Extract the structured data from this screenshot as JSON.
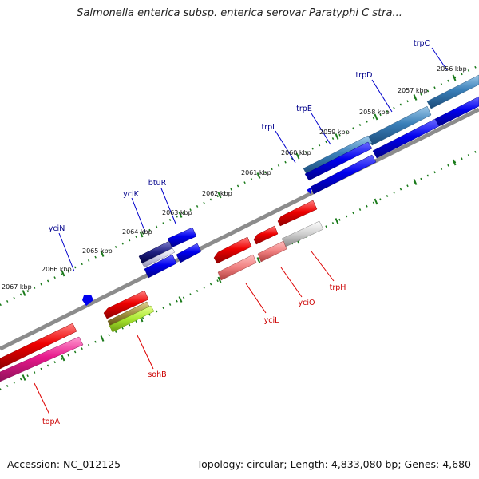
{
  "title": "Salmonella enterica subsp. enterica serovar Paratyphi C stra...",
  "accession": "Accession: NC_012125",
  "summary": "Topology: circular; Length: 4,833,080 bp; Genes: 4,680",
  "colors": {
    "backbone": "#8c8c8c",
    "tick": "#1a7a1a",
    "forward_label": "#00008b",
    "reverse_label": "#cc0000",
    "forward_gene": "#0000ee",
    "reverse_gene": "#ee0000"
  },
  "kbp_labels": [
    "2056 kbp",
    "2057 kbp",
    "2058 kbp",
    "2059 kbp",
    "2060 kbp",
    "2061 kbp",
    "2062 kbp",
    "2063 kbp",
    "2064 kbp",
    "2065 kbp",
    "2066 kbp",
    "2067 kbp"
  ],
  "forward_genes": [
    "trpC",
    "trpD",
    "trpE",
    "trpL",
    "btuR",
    "yciK",
    "yciN"
  ],
  "reverse_genes": [
    "trpH",
    "yciO",
    "yciL",
    "sohB",
    "topA"
  ]
}
